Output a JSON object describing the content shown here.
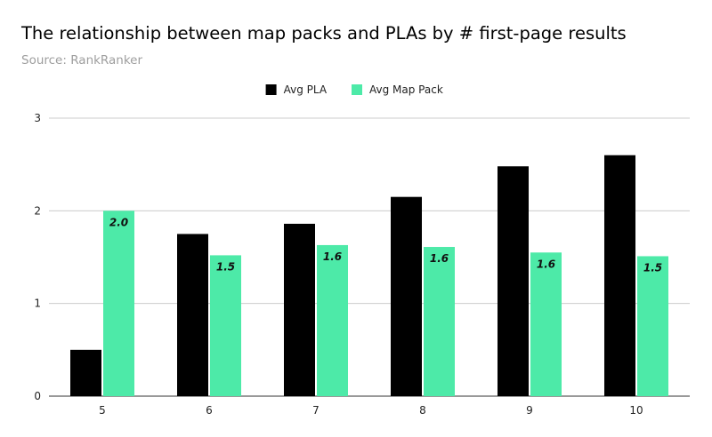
{
  "header": {
    "title": "The relationship between map packs and PLAs by # first-page results",
    "subtitle": "Source: RankRanker"
  },
  "chart_data": {
    "type": "bar",
    "categories": [
      "5",
      "6",
      "7",
      "8",
      "9",
      "10"
    ],
    "series": [
      {
        "name": "Avg PLA",
        "color": "#000000",
        "values": [
          0.5,
          1.75,
          1.86,
          2.15,
          2.48,
          2.6
        ],
        "labels": []
      },
      {
        "name": "Avg Map Pack",
        "color": "#4deaa8",
        "values": [
          2.0,
          1.52,
          1.63,
          1.61,
          1.55,
          1.51
        ],
        "labels": [
          "2.0",
          "1.5",
          "1.6",
          "1.6",
          "1.6",
          "1.5"
        ]
      }
    ],
    "ylim": [
      0,
      3
    ],
    "yticks": [
      0,
      1,
      2,
      3
    ],
    "grid": true,
    "legend": "top-center"
  }
}
